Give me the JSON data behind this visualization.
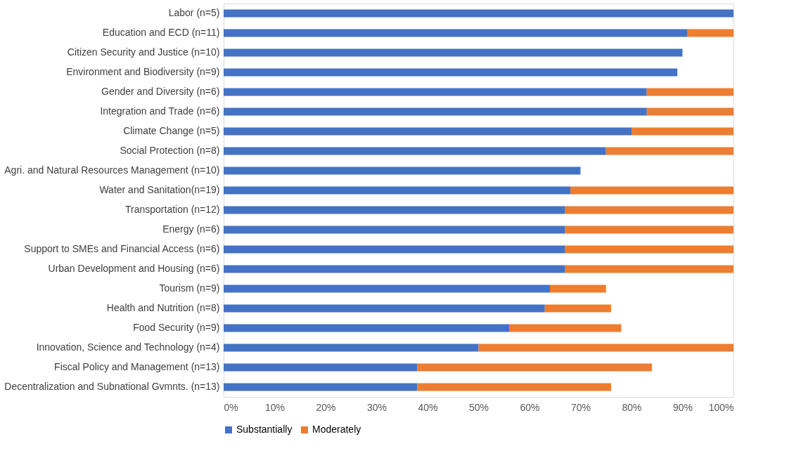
{
  "chart_data": {
    "type": "bar",
    "orientation": "horizontal",
    "stacked": true,
    "categories": [
      "Labor (n=5)",
      "Education and ECD (n=11)",
      "Citizen Security and Justice (n=10)",
      "Environment and Biodiversity (n=9)",
      "Gender and Diversity (n=6)",
      "Integration and Trade (n=6)",
      "Climate Change (n=5)",
      "Social Protection (n=8)",
      "Agri. and Natural Resources Management (n=10)",
      "Water and Sanitation(n=19)",
      "Transportation (n=12)",
      "Energy (n=6)",
      "Support to SMEs and Financial Access (n=6)",
      "Urban Development and Housing (n=6)",
      "Tourism (n=9)",
      "Health and Nutrition (n=8)",
      "Food Security (n=9)",
      "Innovation, Science and Technology (n=4)",
      "Fiscal Policy and Management (n=13)",
      "Decentralization and Subnational Gvmnts. (n=13)"
    ],
    "series": [
      {
        "name": "Substantially",
        "color": "#4472c4",
        "values": [
          100,
          91,
          90,
          89,
          83,
          83,
          80,
          75,
          70,
          68,
          67,
          67,
          67,
          67,
          64,
          63,
          56,
          50,
          38,
          38
        ]
      },
      {
        "name": "Moderately",
        "color": "#ed7d31",
        "values": [
          null,
          9,
          null,
          null,
          17,
          17,
          20,
          25,
          null,
          32,
          33,
          33,
          33,
          33,
          11,
          13,
          22,
          50,
          46,
          38
        ]
      }
    ],
    "xlim": [
      0,
      100
    ],
    "xticks": [
      {
        "value": 0,
        "label": "0%"
      },
      {
        "value": 10,
        "label": "10%"
      },
      {
        "value": 20,
        "label": "20%"
      },
      {
        "value": 30,
        "label": "30%"
      },
      {
        "value": 40,
        "label": "40%"
      },
      {
        "value": 50,
        "label": "50%"
      },
      {
        "value": 60,
        "label": "60%"
      },
      {
        "value": 70,
        "label": "70%"
      },
      {
        "value": 80,
        "label": "80%"
      },
      {
        "value": 90,
        "label": "90%"
      },
      {
        "value": 100,
        "label": "100%"
      }
    ],
    "grid": false,
    "legend": "bottom"
  }
}
